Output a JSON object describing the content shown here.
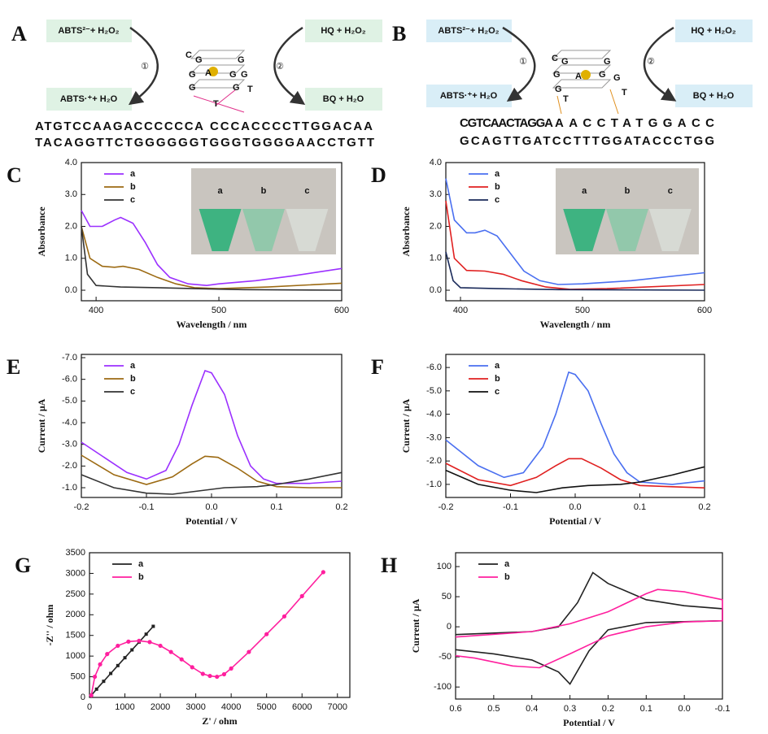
{
  "diagrams": {
    "A": {
      "label": "A",
      "boxes": [
        "ABTS²⁻+ H₂O₂",
        "HQ + H₂O₂",
        "ABTS·⁺+ H₂O",
        "BQ + H₂O"
      ],
      "steps": [
        "①",
        "②"
      ],
      "quadruplex": [
        "C",
        "G",
        "G",
        "G",
        "A",
        "G",
        "G",
        "G",
        "G",
        "T",
        "T"
      ],
      "strand1": [
        "ATGTCCAAGACCCCCCA",
        "CCCACCCCTTGGACAA"
      ],
      "strand2": "TACAGGTTCTGGGGGGTGGGTGGGGAACCTGTT"
    },
    "B": {
      "label": "B",
      "boxes": [
        "ABTS²⁻+ H₂O₂",
        "HQ + H₂O₂",
        "ABTS·⁺+ H₂O",
        "BQ + H₂O"
      ],
      "steps": [
        "①",
        "②"
      ],
      "quadruplex": [
        "C",
        "G",
        "G",
        "G",
        "A",
        "G",
        "G",
        "G",
        "T",
        "T"
      ],
      "strand1": [
        "CGTCAACTAGGA",
        "AACCTATGGACC"
      ],
      "strand2": "GCAGTTGATCCTTTGGATACCCTGG"
    }
  },
  "chart_data": [
    {
      "type": "line",
      "label": "C",
      "xlabel": "Wavelength / nm",
      "ylabel": "Absorbance",
      "xlim": [
        388,
        600
      ],
      "ylim": [
        -0.33,
        4.0
      ],
      "xticks": [
        400,
        500,
        600
      ],
      "yticks": [
        {
          "value": 0,
          "label": "0.0"
        },
        {
          "value": 1,
          "label": "1.0"
        },
        {
          "value": 2,
          "label": "2.0"
        },
        {
          "value": 3,
          "label": "3.0"
        },
        {
          "value": 4,
          "label": "4.0"
        }
      ],
      "inset_labels": [
        "a",
        "b",
        "c"
      ],
      "series": [
        {
          "name": "a",
          "color": "#9b30ff",
          "x": [
            388,
            395,
            405,
            415,
            420,
            430,
            440,
            450,
            460,
            475,
            490,
            500,
            530,
            560,
            600
          ],
          "values": [
            2.5,
            2.0,
            2.0,
            2.2,
            2.28,
            2.1,
            1.5,
            0.8,
            0.4,
            0.2,
            0.15,
            0.2,
            0.3,
            0.45,
            0.68
          ]
        },
        {
          "name": "b",
          "color": "#9c6a12",
          "x": [
            388,
            395,
            405,
            415,
            422,
            435,
            450,
            465,
            480,
            500,
            540,
            600
          ],
          "values": [
            2.0,
            1.0,
            0.75,
            0.72,
            0.75,
            0.65,
            0.4,
            0.2,
            0.08,
            0.05,
            0.1,
            0.22
          ]
        },
        {
          "name": "c",
          "color": "#333333",
          "x": [
            388,
            393,
            400,
            420,
            450,
            480,
            520,
            600
          ],
          "values": [
            2.0,
            0.5,
            0.15,
            0.1,
            0.08,
            0.05,
            0.02,
            0.0
          ]
        }
      ]
    },
    {
      "type": "line",
      "label": "D",
      "xlabel": "Wavelength / nm",
      "ylabel": "Absorbance",
      "xlim": [
        388,
        600
      ],
      "ylim": [
        -0.33,
        4.0
      ],
      "xticks": [
        400,
        500,
        600
      ],
      "yticks": [
        {
          "value": 0,
          "label": "0.0"
        },
        {
          "value": 1,
          "label": "1.0"
        },
        {
          "value": 2,
          "label": "2.0"
        },
        {
          "value": 3,
          "label": "3.0"
        },
        {
          "value": 4,
          "label": "4.0"
        }
      ],
      "inset_labels": [
        "a",
        "b",
        "c"
      ],
      "series": [
        {
          "name": "a",
          "color": "#4a6ff0",
          "x": [
            388,
            395,
            405,
            412,
            420,
            430,
            440,
            452,
            465,
            480,
            500,
            540,
            600
          ],
          "values": [
            3.5,
            2.2,
            1.8,
            1.8,
            1.88,
            1.7,
            1.2,
            0.6,
            0.3,
            0.18,
            0.2,
            0.3,
            0.55
          ]
        },
        {
          "name": "b",
          "color": "#e02020",
          "x": [
            388,
            395,
            405,
            420,
            435,
            450,
            470,
            490,
            520,
            600
          ],
          "values": [
            2.8,
            1.0,
            0.62,
            0.6,
            0.5,
            0.3,
            0.1,
            0.03,
            0.05,
            0.18
          ]
        },
        {
          "name": "c",
          "color": "#1a2a5a",
          "x": [
            388,
            394,
            400,
            430,
            480,
            600
          ],
          "values": [
            1.2,
            0.3,
            0.08,
            0.05,
            0.02,
            0.0
          ]
        }
      ]
    },
    {
      "type": "line",
      "label": "E",
      "xlabel": "Potential / V",
      "ylabel": "Current / μA",
      "xlim": [
        -0.2,
        0.2
      ],
      "ylim": [
        -0.55,
        -7.15
      ],
      "xticks": [
        -0.2,
        -0.1,
        {
          "value": 0,
          "label": "0.0"
        },
        0.1,
        0.2
      ],
      "yticks": [
        {
          "value": -1,
          "label": "-1.0"
        },
        {
          "value": -2,
          "label": "-2.0"
        },
        {
          "value": -3,
          "label": "-3.0"
        },
        {
          "value": -4,
          "label": "-4.0"
        },
        {
          "value": -5,
          "label": "-5.0"
        },
        {
          "value": -6,
          "label": "-6.0"
        },
        {
          "value": -7,
          "label": "-7.0"
        }
      ],
      "series": [
        {
          "name": "a",
          "color": "#9b30ff",
          "x": [
            -0.2,
            -0.17,
            -0.13,
            -0.1,
            -0.07,
            -0.05,
            -0.03,
            -0.01,
            0.0,
            0.02,
            0.04,
            0.06,
            0.08,
            0.1,
            0.15,
            0.2
          ],
          "values": [
            -3.1,
            -2.5,
            -1.7,
            -1.4,
            -1.8,
            -3.0,
            -4.8,
            -6.4,
            -6.3,
            -5.3,
            -3.4,
            -2.0,
            -1.4,
            -1.2,
            -1.2,
            -1.3
          ]
        },
        {
          "name": "b",
          "color": "#9c6a12",
          "x": [
            -0.2,
            -0.15,
            -0.1,
            -0.06,
            -0.03,
            -0.01,
            0.01,
            0.04,
            0.07,
            0.1,
            0.15,
            0.2
          ],
          "values": [
            -2.5,
            -1.6,
            -1.15,
            -1.5,
            -2.1,
            -2.45,
            -2.4,
            -1.9,
            -1.3,
            -1.05,
            -1.0,
            -1.0
          ]
        },
        {
          "name": "c",
          "color": "#333333",
          "x": [
            -0.2,
            -0.15,
            -0.1,
            -0.06,
            -0.02,
            0.02,
            0.07,
            0.1,
            0.15,
            0.2
          ],
          "values": [
            -1.6,
            -1.0,
            -0.75,
            -0.7,
            -0.85,
            -1.0,
            -1.05,
            -1.15,
            -1.4,
            -1.7
          ]
        }
      ]
    },
    {
      "type": "line",
      "label": "F",
      "xlabel": "Potential / V",
      "ylabel": "Current / μA",
      "xlim": [
        -0.2,
        0.2
      ],
      "ylim": [
        -0.44,
        -6.56
      ],
      "xticks": [
        -0.2,
        -0.1,
        {
          "value": 0,
          "label": "0.0"
        },
        0.1,
        0.2
      ],
      "yticks": [
        {
          "value": -1,
          "label": "-1.0"
        },
        {
          "value": -2,
          "label": "-2.0"
        },
        {
          "value": -3,
          "label": "-3.0"
        },
        {
          "value": -4,
          "label": "-4.0"
        },
        {
          "value": -5,
          "label": "-5.0"
        },
        {
          "value": -6,
          "label": "-6.0"
        }
      ],
      "series": [
        {
          "name": "a",
          "color": "#4a6ff0",
          "x": [
            -0.2,
            -0.15,
            -0.11,
            -0.08,
            -0.05,
            -0.03,
            -0.01,
            0.0,
            0.02,
            0.04,
            0.06,
            0.08,
            0.1,
            0.15,
            0.2
          ],
          "values": [
            -2.9,
            -1.8,
            -1.3,
            -1.5,
            -2.6,
            -4.0,
            -5.8,
            -5.7,
            -5.0,
            -3.6,
            -2.3,
            -1.5,
            -1.1,
            -1.0,
            -1.15
          ]
        },
        {
          "name": "b",
          "color": "#e02020",
          "x": [
            -0.2,
            -0.15,
            -0.1,
            -0.06,
            -0.03,
            -0.01,
            0.01,
            0.04,
            0.07,
            0.1,
            0.15,
            0.2
          ],
          "values": [
            -1.9,
            -1.2,
            -0.95,
            -1.3,
            -1.8,
            -2.1,
            -2.1,
            -1.7,
            -1.2,
            -0.95,
            -0.9,
            -0.85
          ]
        },
        {
          "name": "c",
          "color": "#111111",
          "x": [
            -0.2,
            -0.15,
            -0.1,
            -0.06,
            -0.02,
            0.02,
            0.07,
            0.1,
            0.15,
            0.2
          ],
          "values": [
            -1.6,
            -1.0,
            -0.75,
            -0.65,
            -0.85,
            -0.95,
            -1.0,
            -1.1,
            -1.4,
            -1.75
          ]
        }
      ]
    },
    {
      "type": "line",
      "label": "G",
      "xlabel": "Z' / ohm",
      "ylabel": "-Z'' / ohm",
      "markers": true,
      "xlim": [
        0,
        7350
      ],
      "ylim": [
        0,
        3500
      ],
      "xticks": [
        0,
        1000,
        2000,
        3000,
        4000,
        5000,
        6000,
        7000
      ],
      "yticks": [
        0,
        500,
        1000,
        1500,
        2000,
        2500,
        3000,
        3500
      ],
      "series": [
        {
          "name": "a",
          "color": "#222222",
          "x": [
            50,
            200,
            400,
            600,
            800,
            1000,
            1200,
            1400,
            1600,
            1800
          ],
          "values": [
            50,
            200,
            390,
            580,
            770,
            960,
            1150,
            1340,
            1530,
            1720
          ]
        },
        {
          "name": "b",
          "color": "#ff1f9e",
          "x": [
            50,
            150,
            300,
            500,
            800,
            1100,
            1400,
            1700,
            2000,
            2300,
            2600,
            2900,
            3200,
            3400,
            3600,
            3800,
            4000,
            4500,
            5000,
            5500,
            6000,
            6600
          ],
          "values": [
            50,
            500,
            800,
            1050,
            1250,
            1350,
            1370,
            1340,
            1250,
            1100,
            920,
            730,
            570,
            520,
            500,
            560,
            700,
            1100,
            1530,
            1960,
            2450,
            3030
          ]
        }
      ]
    },
    {
      "type": "line",
      "label": "H",
      "xlabel": "Potential / V",
      "ylabel": "Current / μA",
      "xlim": [
        0.6,
        -0.1
      ],
      "ylim": [
        -120,
        123
      ],
      "xticks": [
        0.6,
        0.5,
        0.4,
        0.3,
        0.2,
        0.1,
        {
          "value": 0,
          "label": "0.0"
        },
        -0.1
      ],
      "yticks": [
        -100,
        -50,
        0,
        50,
        100
      ],
      "series": [
        {
          "name": "a",
          "color": "#222222",
          "x": [
            0.6,
            0.4,
            0.33,
            0.28,
            0.24,
            0.2,
            0.1,
            0.0,
            -0.1,
            -0.1,
            0.1,
            0.2,
            0.25,
            0.3,
            0.33,
            0.4,
            0.5,
            0.6
          ],
          "values": [
            -13,
            -8,
            0,
            40,
            90,
            72,
            45,
            35,
            30,
            10,
            7,
            -5,
            -40,
            -95,
            -75,
            -55,
            -45,
            -38
          ]
        },
        {
          "name": "b",
          "color": "#ff1f9e",
          "x": [
            0.6,
            0.4,
            0.3,
            0.2,
            0.1,
            0.07,
            0.0,
            -0.1,
            -0.1,
            0.0,
            0.1,
            0.2,
            0.3,
            0.38,
            0.45,
            0.55,
            0.6
          ],
          "values": [
            -17,
            -8,
            5,
            25,
            55,
            62,
            58,
            45,
            10,
            8,
            0,
            -15,
            -45,
            -68,
            -65,
            -52,
            -48
          ]
        }
      ]
    }
  ]
}
